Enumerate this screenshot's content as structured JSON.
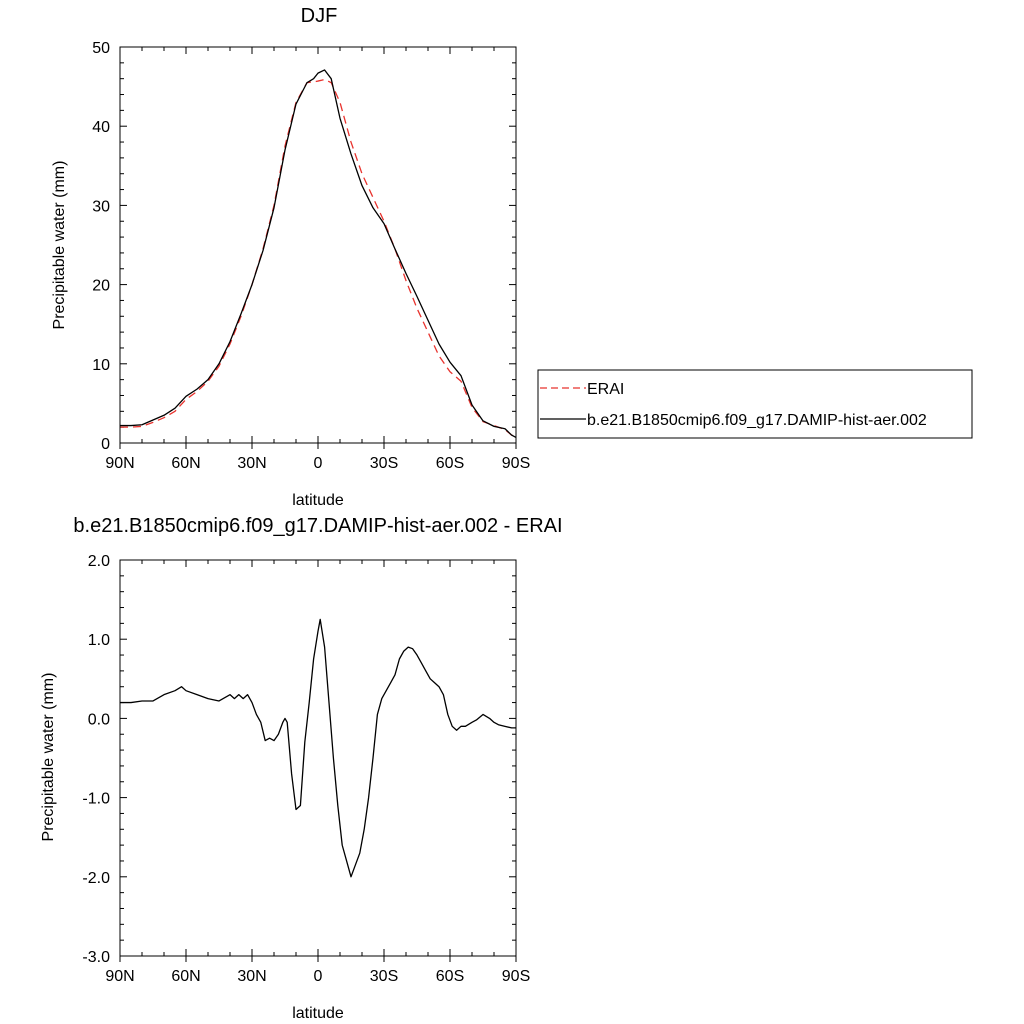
{
  "chart_data": [
    {
      "type": "line",
      "title": "DJF",
      "xlabel": "latitude",
      "ylabel": "Precipitable water (mm)",
      "x_tick_labels": [
        "90N",
        "60N",
        "30N",
        "0",
        "30S",
        "60S",
        "90S"
      ],
      "x_ticks": [
        -90,
        -60,
        -30,
        0,
        30,
        60,
        90
      ],
      "xlim": [
        -90,
        90
      ],
      "ylim": [
        0,
        50
      ],
      "y_ticks": [
        0,
        10,
        20,
        30,
        40,
        50
      ],
      "y_tick_labels": [
        "0",
        "10",
        "20",
        "30",
        "40",
        "50"
      ],
      "legend": "outside-right",
      "series": [
        {
          "name": "ERAI",
          "style": "dashed",
          "color": "#e8332e",
          "x": [
            -90,
            -85,
            -80,
            -75,
            -70,
            -65,
            -60,
            -55,
            -50,
            -45,
            -40,
            -35,
            -30,
            -25,
            -20,
            -15,
            -10,
            -5,
            -2,
            0,
            3,
            6,
            10,
            15,
            20,
            25,
            30,
            35,
            40,
            45,
            50,
            55,
            60,
            65,
            70,
            75,
            80,
            85,
            88,
            90
          ],
          "y": [
            2.0,
            2.0,
            2.1,
            2.6,
            3.2,
            4.0,
            5.5,
            6.5,
            7.8,
            9.7,
            12.5,
            16.0,
            20.0,
            24.5,
            30.0,
            37.5,
            43.0,
            45.5,
            45.6,
            45.7,
            45.9,
            45.5,
            43.0,
            38.0,
            34.0,
            31.0,
            28.0,
            24.5,
            20.5,
            17.0,
            14.0,
            11.0,
            9.0,
            7.8,
            4.5,
            2.7,
            2.2,
            1.7,
            1.0,
            0.8
          ]
        },
        {
          "name": "b.e21.B1850cmip6.f09_g17.DAMIP-hist-aer.002",
          "style": "solid",
          "color": "#000000",
          "x": [
            -90,
            -85,
            -80,
            -75,
            -70,
            -65,
            -60,
            -55,
            -50,
            -45,
            -40,
            -35,
            -30,
            -25,
            -20,
            -15,
            -10,
            -5,
            -2,
            0,
            3,
            6,
            10,
            15,
            20,
            25,
            30,
            35,
            40,
            45,
            50,
            55,
            60,
            65,
            70,
            75,
            80,
            85,
            88,
            90
          ],
          "y": [
            2.2,
            2.2,
            2.3,
            2.9,
            3.5,
            4.4,
            5.9,
            6.8,
            8.0,
            10.0,
            12.8,
            16.3,
            20.0,
            24.3,
            29.7,
            37.0,
            42.8,
            45.5,
            46.0,
            46.7,
            47.1,
            46.0,
            41.0,
            36.5,
            32.5,
            29.7,
            27.7,
            24.5,
            21.4,
            18.5,
            15.5,
            12.5,
            10.2,
            8.5,
            4.8,
            2.8,
            2.1,
            1.8,
            1.0,
            0.7
          ]
        }
      ]
    },
    {
      "type": "line",
      "title": "b.e21.B1850cmip6.f09_g17.DAMIP-hist-aer.002 - ERAI",
      "xlabel": "latitude",
      "ylabel": "Precipitable water (mm)",
      "x_tick_labels": [
        "90N",
        "60N",
        "30N",
        "0",
        "30S",
        "60S",
        "90S"
      ],
      "x_ticks": [
        -90,
        -60,
        -30,
        0,
        30,
        60,
        90
      ],
      "xlim": [
        -90,
        90
      ],
      "ylim": [
        -3,
        2
      ],
      "y_ticks": [
        -3,
        -2,
        -1,
        0,
        1,
        2
      ],
      "y_tick_labels": [
        "-3.0",
        "-2.0",
        "-1.0",
        "0.0",
        "1.0",
        "2.0"
      ],
      "series": [
        {
          "name": "",
          "style": "solid",
          "color": "#000000",
          "x": [
            -90,
            -85,
            -80,
            -75,
            -70,
            -65,
            -62,
            -60,
            -55,
            -50,
            -45,
            -40,
            -38,
            -36,
            -34,
            -32,
            -30,
            -28,
            -26,
            -24,
            -22,
            -20,
            -18,
            -16,
            -15,
            -14,
            -12,
            -10,
            -8,
            -6,
            -4,
            -2,
            0,
            1,
            3,
            5,
            7,
            9,
            11,
            13,
            15,
            17,
            19,
            21,
            23,
            25,
            27,
            29,
            31,
            33,
            35,
            37,
            39,
            41,
            43,
            45,
            47,
            49,
            51,
            53,
            55,
            57,
            59,
            61,
            63,
            65,
            67,
            70,
            72,
            75,
            78,
            80,
            82,
            85,
            88,
            90
          ],
          "y": [
            0.2,
            0.2,
            0.22,
            0.22,
            0.3,
            0.35,
            0.4,
            0.35,
            0.3,
            0.25,
            0.22,
            0.3,
            0.25,
            0.3,
            0.25,
            0.3,
            0.2,
            0.05,
            -0.05,
            -0.28,
            -0.25,
            -0.28,
            -0.2,
            -0.05,
            0.0,
            -0.05,
            -0.7,
            -1.15,
            -1.1,
            -0.3,
            0.2,
            0.75,
            1.1,
            1.25,
            0.9,
            0.2,
            -0.5,
            -1.1,
            -1.6,
            -1.8,
            -2.0,
            -1.85,
            -1.7,
            -1.4,
            -1.0,
            -0.5,
            0.05,
            0.25,
            0.35,
            0.45,
            0.55,
            0.75,
            0.85,
            0.9,
            0.88,
            0.8,
            0.7,
            0.6,
            0.5,
            0.45,
            0.4,
            0.3,
            0.05,
            -0.1,
            -0.15,
            -0.1,
            -0.1,
            -0.05,
            -0.02,
            0.05,
            0.0,
            -0.05,
            -0.08,
            -0.1,
            -0.12,
            -0.12
          ]
        }
      ]
    }
  ]
}
